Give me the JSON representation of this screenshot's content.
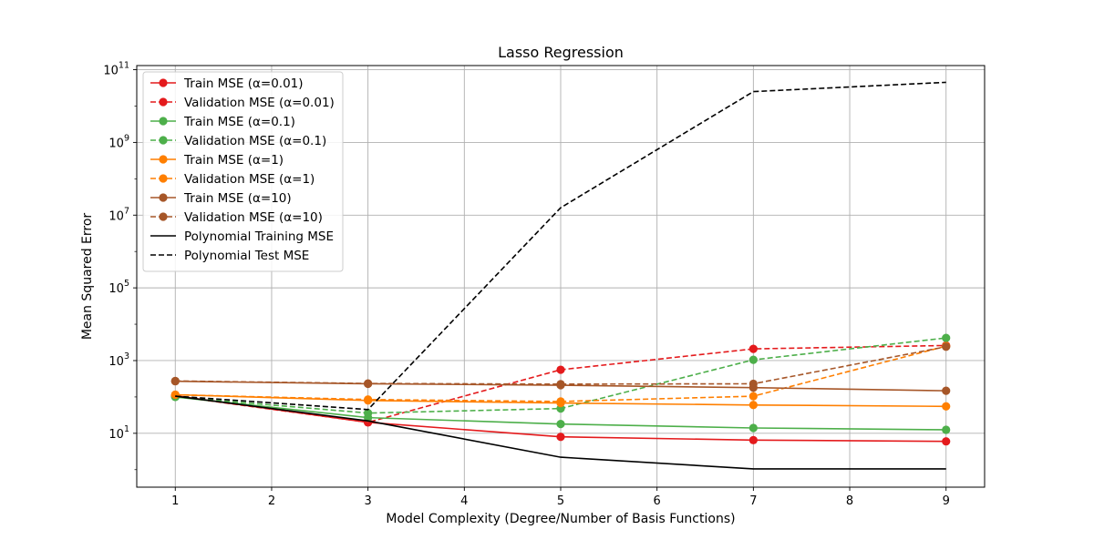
{
  "chart_data": {
    "type": "line",
    "title": "Lasso Regression",
    "xlabel": "Model Complexity (Degree/Number of Basis Functions)",
    "ylabel": "Mean Squared Error",
    "xscale": "linear",
    "yscale": "log",
    "xlim": [
      0.6,
      9.4
    ],
    "ylim": [
      0.33,
      130000000000
    ],
    "xticks": [
      1,
      2,
      3,
      4,
      5,
      6,
      7,
      8,
      9
    ],
    "xtick_labels": [
      "1",
      "2",
      "3",
      "4",
      "5",
      "6",
      "7",
      "8",
      "9"
    ],
    "yticks": [
      10,
      1000,
      100000,
      10000000,
      1000000000,
      100000000000
    ],
    "ytick_labels": [
      {
        "base": "10",
        "exp": "1"
      },
      {
        "base": "10",
        "exp": "3"
      },
      {
        "base": "10",
        "exp": "5"
      },
      {
        "base": "10",
        "exp": "7"
      },
      {
        "base": "10",
        "exp": "9"
      },
      {
        "base": "10",
        "exp": "11"
      }
    ],
    "grid": true,
    "legend_position": "upper-left",
    "x": [
      1,
      3,
      5,
      7,
      9
    ],
    "series": [
      {
        "name": "Train MSE (α=0.01)",
        "color": "#e41a1c",
        "linestyle": "solid",
        "marker": "circle",
        "values": [
          108,
          20,
          8,
          6.5,
          6
        ]
      },
      {
        "name": "Validation MSE (α=0.01)",
        "color": "#e41a1c",
        "linestyle": "dashed",
        "marker": "circle",
        "values": [
          105,
          20,
          560,
          2100,
          2600
        ]
      },
      {
        "name": "Train MSE (α=0.1)",
        "color": "#4daf4a",
        "linestyle": "solid",
        "marker": "circle",
        "values": [
          100,
          27,
          18,
          14,
          12.5
        ]
      },
      {
        "name": "Validation MSE (α=0.1)",
        "color": "#4daf4a",
        "linestyle": "dashed",
        "marker": "circle",
        "values": [
          100,
          36,
          48,
          1050,
          4200
        ]
      },
      {
        "name": "Train MSE (α=1)",
        "color": "#ff7f00",
        "linestyle": "solid",
        "marker": "circle",
        "values": [
          115,
          80,
          68,
          60,
          55
        ]
      },
      {
        "name": "Validation MSE (α=1)",
        "color": "#ff7f00",
        "linestyle": "dashed",
        "marker": "circle",
        "values": [
          115,
          85,
          75,
          105,
          2500
        ]
      },
      {
        "name": "Train MSE (α=10)",
        "color": "#a65628",
        "linestyle": "solid",
        "marker": "circle",
        "values": [
          270,
          230,
          210,
          180,
          148
        ]
      },
      {
        "name": "Validation MSE (α=10)",
        "color": "#a65628",
        "linestyle": "dashed",
        "marker": "circle",
        "values": [
          275,
          235,
          225,
          230,
          2400
        ]
      },
      {
        "name": "Polynomial Training MSE",
        "color": "#000000",
        "linestyle": "solid",
        "marker": "none",
        "values": [
          105,
          22,
          2.2,
          1.05,
          1.05
        ]
      },
      {
        "name": "Polynomial Test MSE",
        "color": "#000000",
        "linestyle": "dashed",
        "marker": "none",
        "values": [
          105,
          45,
          16000000,
          25000000000,
          45000000000
        ]
      }
    ]
  }
}
